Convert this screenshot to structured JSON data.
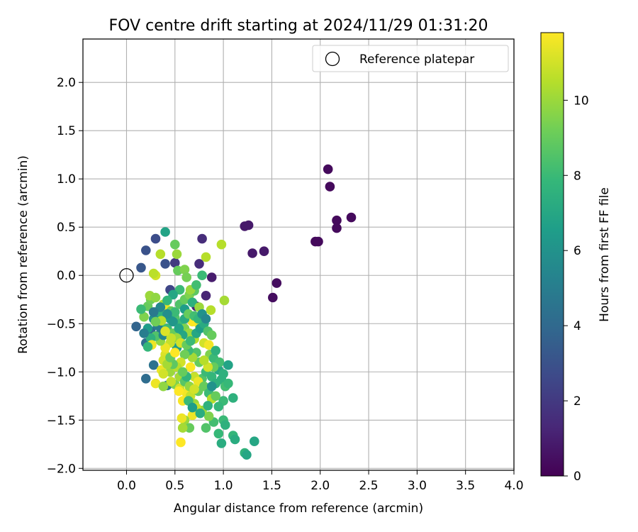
{
  "chart_data": {
    "type": "scatter",
    "title": "FOV centre drift starting at 2024/11/29 01:31:20",
    "xlabel": "Angular distance from reference (arcmin)",
    "ylabel": "Rotation from reference (arcmin)",
    "xlim": [
      -0.45,
      4.0
    ],
    "ylim": [
      -2.02,
      2.45
    ],
    "xticks": [
      "0.0",
      "0.5",
      "1.0",
      "1.5",
      "2.0",
      "2.5",
      "3.0",
      "3.5",
      "4.0"
    ],
    "yticks": [
      "−2.0",
      "−1.5",
      "−1.0",
      "−0.5",
      "0.0",
      "0.5",
      "1.0",
      "1.5",
      "2.0"
    ],
    "grid": true,
    "legend": {
      "placement": "top-right",
      "entries": [
        "Reference platepar"
      ]
    },
    "reference_point": {
      "x": 0.0,
      "y": 0.0,
      "marker": "open-circle"
    },
    "colorbar": {
      "label": "Hours from first FF file",
      "colormap": "viridis",
      "range": [
        0,
        11.8
      ],
      "ticks": [
        "0",
        "2",
        "4",
        "6",
        "8",
        "10"
      ]
    },
    "colormap_stops": [
      "#440154",
      "#482878",
      "#3e4989",
      "#31688e",
      "#26828e",
      "#1f9e89",
      "#35b779",
      "#6ece58",
      "#b5de2b",
      "#fde725"
    ],
    "series": [
      {
        "points": [
          [
            2.08,
            1.1,
            0.3
          ],
          [
            2.1,
            0.92,
            0.3
          ],
          [
            2.17,
            0.57,
            0.3
          ],
          [
            2.17,
            0.49,
            0.3
          ],
          [
            2.32,
            0.6,
            0.3
          ],
          [
            1.95,
            0.35,
            0.3
          ],
          [
            1.98,
            0.35,
            0.3
          ],
          [
            1.22,
            0.51,
            0.8
          ],
          [
            1.26,
            0.52,
            0.8
          ],
          [
            1.3,
            0.23,
            0.8
          ],
          [
            1.42,
            0.25,
            0.8
          ],
          [
            1.55,
            -0.08,
            0.4
          ],
          [
            1.51,
            -0.23,
            0.4
          ],
          [
            0.88,
            -0.02,
            0.9
          ],
          [
            0.82,
            -0.21,
            1.2
          ],
          [
            0.78,
            0.38,
            1.5
          ],
          [
            0.75,
            0.12,
            1.5
          ],
          [
            0.72,
            -0.32,
            1.2
          ],
          [
            0.5,
            0.13,
            2.0
          ],
          [
            0.3,
            0.38,
            2.8
          ],
          [
            0.4,
            0.12,
            3.0
          ],
          [
            0.45,
            -0.15,
            2.5
          ],
          [
            0.2,
            0.26,
            3.0
          ],
          [
            0.15,
            0.08,
            3.2
          ],
          [
            0.1,
            -0.53,
            3.8
          ],
          [
            0.2,
            -0.7,
            4.2
          ],
          [
            0.2,
            -1.07,
            4.2
          ],
          [
            0.28,
            -0.93,
            4.5
          ],
          [
            0.42,
            -1.14,
            5.0
          ],
          [
            0.35,
            -0.6,
            4.8
          ],
          [
            0.25,
            -0.58,
            4.0
          ],
          [
            0.4,
            0.45,
            6.8
          ],
          [
            0.5,
            0.32,
            9.0
          ],
          [
            0.52,
            0.22,
            10.0
          ],
          [
            0.53,
            0.05,
            9.0
          ],
          [
            0.35,
            0.22,
            10.5
          ],
          [
            0.3,
            0.0,
            11.0
          ],
          [
            0.28,
            0.02,
            10.6
          ],
          [
            0.6,
            0.06,
            9.5
          ],
          [
            0.62,
            -0.02,
            9.3
          ],
          [
            0.82,
            0.19,
            10.5
          ],
          [
            0.98,
            0.32,
            10.5
          ],
          [
            1.01,
            -0.26,
            10.2
          ],
          [
            0.87,
            -0.36,
            10.5
          ],
          [
            0.78,
            0.0,
            8.0
          ],
          [
            0.3,
            -0.38,
            8.0
          ],
          [
            0.35,
            -0.4,
            7.5
          ],
          [
            0.22,
            -0.32,
            9.0
          ],
          [
            0.18,
            -0.43,
            9.5
          ],
          [
            0.25,
            -0.25,
            9.2
          ],
          [
            0.24,
            -0.21,
            10.0
          ],
          [
            0.3,
            -0.23,
            9.8
          ],
          [
            0.38,
            -0.3,
            10.4
          ],
          [
            0.4,
            -0.33,
            11.4
          ],
          [
            0.46,
            -0.37,
            9.0
          ],
          [
            0.5,
            -0.44,
            8.5
          ],
          [
            0.55,
            -0.5,
            8.0
          ],
          [
            0.6,
            -0.55,
            9.5
          ],
          [
            0.65,
            -0.6,
            10.0
          ],
          [
            0.7,
            -0.66,
            10.5
          ],
          [
            0.75,
            -0.51,
            11.5
          ],
          [
            0.8,
            -0.7,
            11.0
          ],
          [
            0.85,
            -0.72,
            11.6
          ],
          [
            0.68,
            -0.48,
            11.8
          ],
          [
            0.58,
            -0.62,
            7.0
          ],
          [
            0.52,
            -0.75,
            6.5
          ],
          [
            0.45,
            -0.7,
            10.8
          ],
          [
            0.4,
            -0.82,
            11.2
          ],
          [
            0.38,
            -0.88,
            11.0
          ],
          [
            0.36,
            -0.98,
            11.5
          ],
          [
            0.45,
            -1.0,
            10.0
          ],
          [
            0.5,
            -1.13,
            9.5
          ],
          [
            0.55,
            -1.17,
            11.0
          ],
          [
            0.62,
            -1.22,
            11.6
          ],
          [
            0.66,
            -1.25,
            10.8
          ],
          [
            0.58,
            -1.3,
            11.7
          ],
          [
            0.7,
            -1.33,
            10.0
          ],
          [
            0.74,
            -1.2,
            9.0
          ],
          [
            0.78,
            -1.07,
            8.5
          ],
          [
            0.82,
            -1.0,
            8.0
          ],
          [
            0.88,
            -1.05,
            7.8
          ],
          [
            0.92,
            -1.12,
            7.5
          ],
          [
            0.95,
            -0.98,
            7.0
          ],
          [
            0.98,
            -1.08,
            7.5
          ],
          [
            1.02,
            -1.15,
            8.2
          ],
          [
            1.05,
            -1.12,
            7.9
          ],
          [
            1.1,
            -1.27,
            7.5
          ],
          [
            1.0,
            -1.3,
            8.0
          ],
          [
            0.95,
            -1.36,
            7.8
          ],
          [
            1.0,
            -1.5,
            8.0
          ],
          [
            1.02,
            -1.55,
            7.5
          ],
          [
            1.1,
            -1.66,
            7.8
          ],
          [
            1.12,
            -1.7,
            7.3
          ],
          [
            1.22,
            -1.84,
            7.6
          ],
          [
            1.24,
            -1.86,
            7.0
          ],
          [
            1.32,
            -1.72,
            7.0
          ],
          [
            0.98,
            -1.74,
            7.3
          ],
          [
            0.95,
            -1.64,
            7.9
          ],
          [
            0.9,
            -1.52,
            8.2
          ],
          [
            0.85,
            -1.46,
            9.5
          ],
          [
            0.78,
            -1.4,
            10.0
          ],
          [
            0.72,
            -1.37,
            10.8
          ],
          [
            0.68,
            -1.45,
            11.5
          ],
          [
            0.6,
            -1.5,
            10.0
          ],
          [
            0.57,
            -1.48,
            11.5
          ],
          [
            0.65,
            -1.58,
            9.0
          ],
          [
            0.82,
            -1.58,
            8.5
          ],
          [
            0.56,
            -1.73,
            11.9
          ],
          [
            0.58,
            -1.58,
            10.2
          ],
          [
            0.75,
            -0.9,
            9.0
          ],
          [
            0.72,
            -0.8,
            8.5
          ],
          [
            0.68,
            -0.85,
            10.2
          ],
          [
            0.64,
            -0.78,
            8.0
          ],
          [
            0.6,
            -0.82,
            9.2
          ],
          [
            0.56,
            -0.9,
            11.0
          ],
          [
            0.52,
            -0.95,
            10.5
          ],
          [
            0.48,
            -0.92,
            8.8
          ],
          [
            0.66,
            -0.95,
            11.8
          ],
          [
            0.7,
            -1.05,
            10.8
          ],
          [
            0.74,
            -1.1,
            11.5
          ],
          [
            0.8,
            -1.15,
            9.0
          ],
          [
            0.85,
            -1.22,
            8.0
          ],
          [
            0.88,
            -1.28,
            10.5
          ],
          [
            0.92,
            -1.25,
            9.0
          ],
          [
            0.55,
            -1.05,
            10.2
          ],
          [
            0.6,
            -1.1,
            8.7
          ],
          [
            0.65,
            -1.15,
            9.8
          ],
          [
            0.7,
            -1.18,
            11.0
          ],
          [
            0.3,
            -1.12,
            11.5
          ],
          [
            0.38,
            -1.02,
            11.0
          ],
          [
            0.42,
            -0.92,
            10.2
          ],
          [
            0.45,
            -0.85,
            9.0
          ],
          [
            0.5,
            -0.8,
            11.8
          ],
          [
            0.4,
            -0.75,
            11.5
          ],
          [
            0.35,
            -0.68,
            9.8
          ],
          [
            0.3,
            -0.63,
            8.5
          ],
          [
            0.25,
            -0.65,
            7.5
          ],
          [
            0.22,
            -0.55,
            6.5
          ],
          [
            0.28,
            -0.45,
            6.0
          ],
          [
            0.35,
            -0.5,
            7.0
          ],
          [
            0.42,
            -0.55,
            8.0
          ],
          [
            0.48,
            -0.6,
            9.0
          ],
          [
            0.52,
            -0.65,
            10.0
          ],
          [
            0.56,
            -0.7,
            11.0
          ],
          [
            0.62,
            -0.72,
            9.0
          ],
          [
            0.66,
            -0.68,
            8.0
          ],
          [
            0.72,
            -0.6,
            7.0
          ],
          [
            0.76,
            -0.55,
            6.5
          ],
          [
            0.8,
            -0.5,
            7.2
          ],
          [
            0.84,
            -0.58,
            8.5
          ],
          [
            0.88,
            -0.62,
            9.0
          ],
          [
            0.86,
            -0.82,
            9.5
          ],
          [
            0.9,
            -0.86,
            8.0
          ],
          [
            0.92,
            -0.78,
            7.5
          ],
          [
            0.96,
            -0.9,
            8.2
          ],
          [
            1.05,
            -0.93,
            6.8
          ],
          [
            1.0,
            -1.02,
            7.5
          ],
          [
            0.9,
            -0.95,
            9.0
          ],
          [
            0.84,
            -0.95,
            11.0
          ],
          [
            0.8,
            -0.88,
            10.5
          ],
          [
            0.45,
            -0.45,
            6.5
          ],
          [
            0.5,
            -0.38,
            8.0
          ],
          [
            0.55,
            -0.3,
            8.5
          ],
          [
            0.6,
            -0.25,
            9.0
          ],
          [
            0.65,
            -0.2,
            9.5
          ],
          [
            0.7,
            -0.16,
            8.8
          ],
          [
            0.66,
            -0.15,
            10.0
          ],
          [
            0.72,
            -0.1,
            8.2
          ],
          [
            0.6,
            -0.35,
            6.5
          ],
          [
            0.68,
            -0.28,
            7.5
          ],
          [
            0.75,
            -0.33,
            10.0
          ],
          [
            0.55,
            -0.15,
            8.0
          ],
          [
            0.48,
            -0.2,
            7.0
          ],
          [
            0.42,
            -0.26,
            7.8
          ],
          [
            0.35,
            -0.33,
            5.5
          ],
          [
            0.28,
            -0.38,
            4.8
          ],
          [
            0.32,
            -0.52,
            5.0
          ],
          [
            0.38,
            -0.62,
            5.5
          ],
          [
            0.42,
            -0.4,
            5.8
          ],
          [
            0.48,
            -0.48,
            6.2
          ],
          [
            0.54,
            -0.55,
            6.8
          ],
          [
            0.6,
            -0.45,
            7.2
          ],
          [
            0.64,
            -0.4,
            9.0
          ],
          [
            0.7,
            -0.42,
            8.2
          ],
          [
            0.74,
            -0.45,
            7.8
          ],
          [
            0.78,
            -0.4,
            6.0
          ],
          [
            0.82,
            -0.45,
            5.5
          ],
          [
            0.46,
            -0.65,
            10.8
          ],
          [
            0.4,
            -0.58,
            11.2
          ],
          [
            0.36,
            -0.47,
            10.5
          ],
          [
            0.3,
            -0.48,
            9.2
          ],
          [
            0.26,
            -0.72,
            11.5
          ],
          [
            0.22,
            -0.74,
            7.8
          ],
          [
            0.18,
            -0.6,
            5.0
          ],
          [
            0.15,
            -0.35,
            8.0
          ],
          [
            0.64,
            -1.3,
            8.0
          ],
          [
            0.68,
            -1.37,
            6.5
          ],
          [
            0.76,
            -1.43,
            7.3
          ],
          [
            0.84,
            -1.35,
            7.5
          ],
          [
            0.62,
            -1.05,
            7.7
          ],
          [
            0.58,
            -1.0,
            9.0
          ],
          [
            0.54,
            -1.2,
            11.8
          ],
          [
            0.46,
            -1.1,
            10.8
          ],
          [
            0.38,
            -1.15,
            9.8
          ],
          [
            0.88,
            -1.15,
            6.0
          ]
        ]
      }
    ]
  }
}
